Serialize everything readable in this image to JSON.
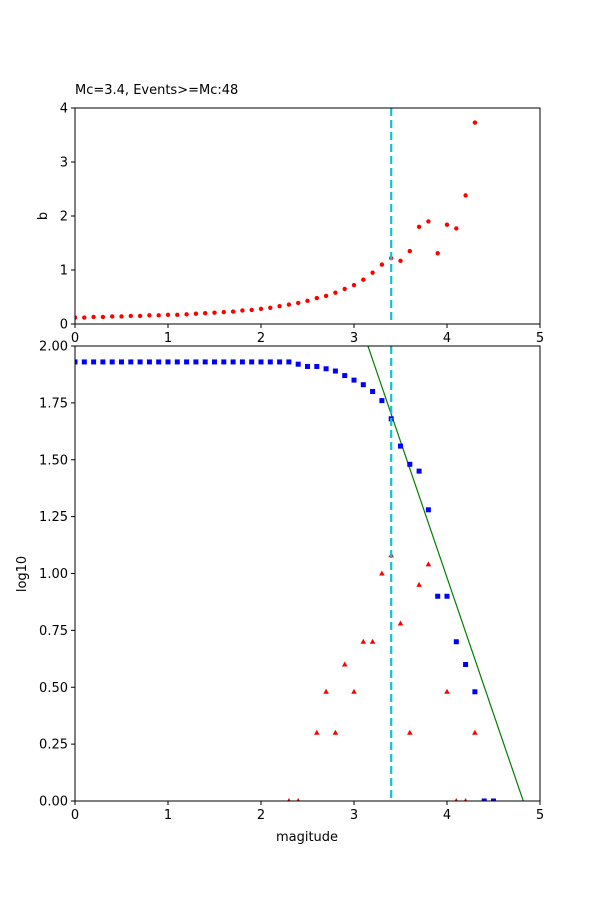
{
  "colors": {
    "b_points": "#ff0000",
    "cumulative": "#0000ff",
    "noncumulative": "#ff0000",
    "fit_line": "#008000",
    "mc_line": "#17becf"
  },
  "chart_data": [
    {
      "type": "scatter",
      "title": "Mc=3.4, Events>=Mc:48",
      "xlabel": "",
      "ylabel": "b",
      "xlim": [
        0,
        5
      ],
      "ylim": [
        0,
        4
      ],
      "xticks": [
        "0",
        "1",
        "2",
        "3",
        "4",
        "5"
      ],
      "yticks": [
        "0",
        "1",
        "2",
        "3",
        "4"
      ],
      "mc_line_x": 3.4,
      "series": [
        {
          "marker": "circle",
          "x": [
            0.0,
            0.1,
            0.2,
            0.3,
            0.4,
            0.5,
            0.6,
            0.7,
            0.8,
            0.9,
            1.0,
            1.1,
            1.2,
            1.3,
            1.4,
            1.5,
            1.6,
            1.7,
            1.8,
            1.9,
            2.0,
            2.1,
            2.2,
            2.3,
            2.4,
            2.5,
            2.6,
            2.7,
            2.8,
            2.9,
            3.0,
            3.1,
            3.2,
            3.3,
            3.4,
            3.5,
            3.6,
            3.7,
            3.8,
            3.9,
            4.0,
            4.1,
            4.2,
            4.3
          ],
          "y": [
            0.12,
            0.12,
            0.13,
            0.13,
            0.14,
            0.14,
            0.15,
            0.15,
            0.16,
            0.16,
            0.17,
            0.17,
            0.18,
            0.19,
            0.2,
            0.21,
            0.22,
            0.23,
            0.25,
            0.26,
            0.28,
            0.3,
            0.33,
            0.36,
            0.39,
            0.43,
            0.48,
            0.52,
            0.58,
            0.65,
            0.72,
            0.82,
            0.95,
            1.1,
            1.22,
            1.17,
            1.35,
            1.8,
            1.9,
            1.31,
            1.84,
            1.77,
            2.38,
            3.73
          ]
        }
      ]
    },
    {
      "type": "scatter",
      "title": "",
      "xlabel": "magitude",
      "ylabel": "log10",
      "xlim": [
        0,
        5
      ],
      "ylim": [
        0,
        2
      ],
      "xticks": [
        "0",
        "1",
        "2",
        "3",
        "4",
        "5"
      ],
      "yticks": [
        "0.00",
        "0.25",
        "0.50",
        "0.75",
        "1.00",
        "1.25",
        "1.50",
        "1.75",
        "2.00"
      ],
      "mc_line_x": 3.4,
      "fit_line": {
        "x": [
          3.15,
          4.82
        ],
        "y": [
          2.0,
          0.0
        ]
      },
      "series": [
        {
          "marker": "square",
          "x": [
            0.0,
            0.1,
            0.2,
            0.3,
            0.4,
            0.5,
            0.6,
            0.7,
            0.8,
            0.9,
            1.0,
            1.1,
            1.2,
            1.3,
            1.4,
            1.5,
            1.6,
            1.7,
            1.8,
            1.9,
            2.0,
            2.1,
            2.2,
            2.3,
            2.4,
            2.5,
            2.6,
            2.7,
            2.8,
            2.9,
            3.0,
            3.1,
            3.2,
            3.3,
            3.4,
            3.5,
            3.6,
            3.7,
            3.8,
            3.9,
            4.0,
            4.1,
            4.2,
            4.3,
            4.4,
            4.5
          ],
          "y": [
            1.93,
            1.93,
            1.93,
            1.93,
            1.93,
            1.93,
            1.93,
            1.93,
            1.93,
            1.93,
            1.93,
            1.93,
            1.93,
            1.93,
            1.93,
            1.93,
            1.93,
            1.93,
            1.93,
            1.93,
            1.93,
            1.93,
            1.93,
            1.93,
            1.92,
            1.91,
            1.91,
            1.9,
            1.89,
            1.87,
            1.85,
            1.83,
            1.8,
            1.76,
            1.68,
            1.56,
            1.48,
            1.45,
            1.28,
            0.9,
            0.9,
            0.7,
            0.6,
            0.48,
            0.0,
            0.0
          ]
        },
        {
          "marker": "triangle",
          "x": [
            2.3,
            2.4,
            2.6,
            2.7,
            2.8,
            2.9,
            3.0,
            3.1,
            3.2,
            3.3,
            3.4,
            3.5,
            3.6,
            3.7,
            3.8,
            4.0,
            4.1,
            4.2,
            4.3
          ],
          "y": [
            0.0,
            0.0,
            0.3,
            0.48,
            0.3,
            0.6,
            0.48,
            0.7,
            0.7,
            1.0,
            1.08,
            0.78,
            0.3,
            0.95,
            1.04,
            0.48,
            0.0,
            0.0,
            0.3
          ]
        }
      ]
    }
  ]
}
